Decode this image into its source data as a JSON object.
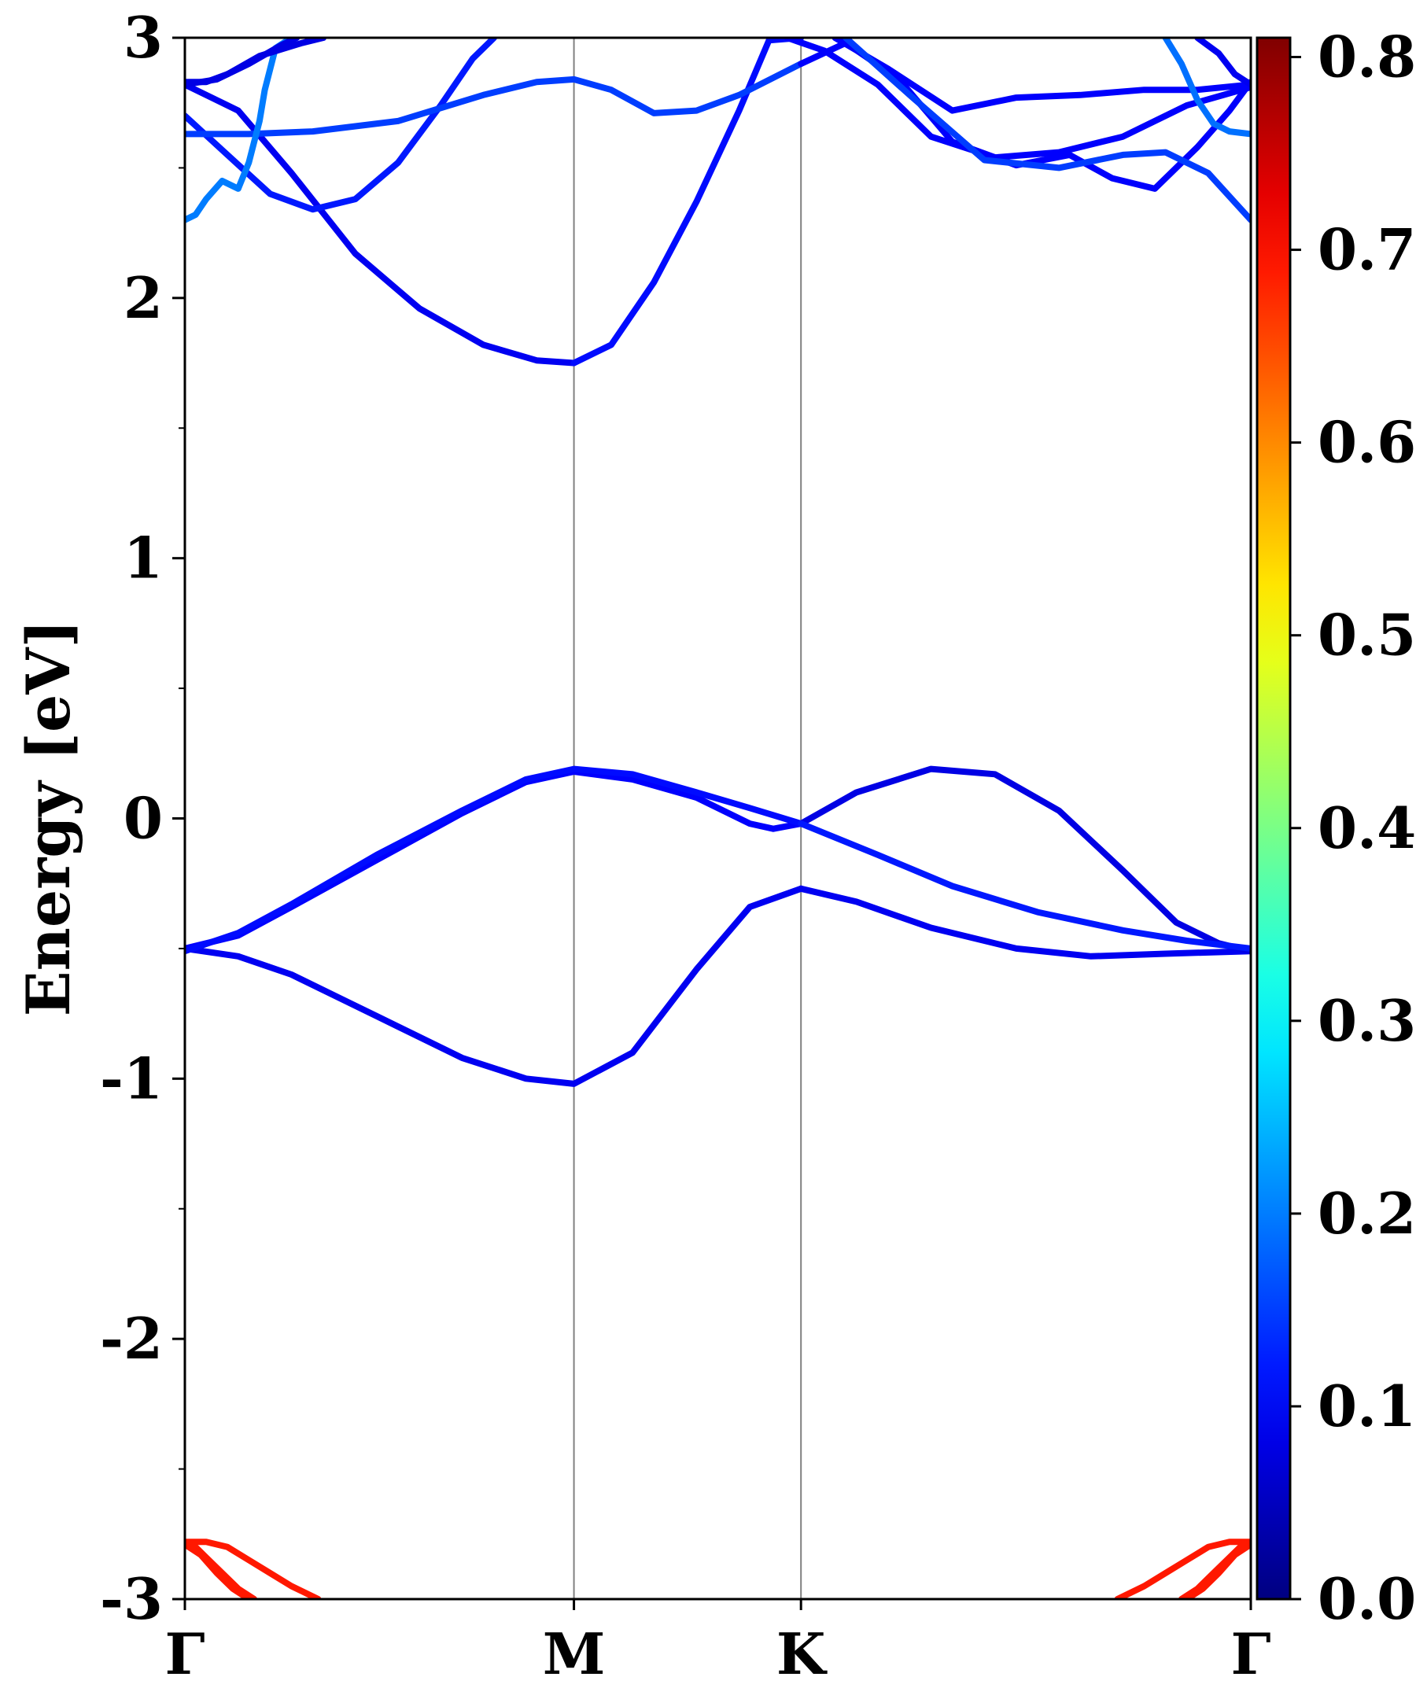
{
  "chart_data": {
    "type": "line",
    "title": "",
    "xlabel": "",
    "ylabel": "Energy [eV]",
    "ylim": [
      -3,
      3
    ],
    "yticks": [
      {
        "value": 3,
        "label": "3"
      },
      {
        "value": 2,
        "label": "2"
      },
      {
        "value": 1,
        "label": "1"
      },
      {
        "value": 0,
        "label": "0"
      },
      {
        "value": -1,
        "label": "-1"
      },
      {
        "value": -2,
        "label": "-2"
      },
      {
        "value": -3,
        "label": "-3"
      }
    ],
    "yminor": [
      2.5,
      1.5,
      0.5,
      -0.5,
      -1.5,
      -2.5
    ],
    "xlim": [
      0,
      1
    ],
    "kpoints": [
      {
        "label": "Γ",
        "x": 0.0
      },
      {
        "label": "M",
        "x": 0.365
      },
      {
        "label": "K",
        "x": 0.578
      },
      {
        "label": "Γ",
        "x": 1.0
      }
    ],
    "grid": false,
    "colorbar": {
      "cmap": "jet",
      "range": [
        0.0,
        0.81
      ],
      "ticks": [
        {
          "value": 0.0,
          "label": "0.0"
        },
        {
          "value": 0.1,
          "label": "0.1"
        },
        {
          "value": 0.2,
          "label": "0.2"
        },
        {
          "value": 0.3,
          "label": "0.3"
        },
        {
          "value": 0.4,
          "label": "0.4"
        },
        {
          "value": 0.5,
          "label": "0.5"
        },
        {
          "value": 0.6,
          "label": "0.6"
        },
        {
          "value": 0.7,
          "label": "0.7"
        },
        {
          "value": 0.8,
          "label": "0.8"
        }
      ]
    },
    "series": [
      {
        "weight": 0.09,
        "x": [
          0,
          0.05,
          0.1,
          0.18,
          0.26,
          0.32,
          0.365,
          0.42,
          0.48,
          0.53,
          0.578
        ],
        "y": [
          -0.5,
          -0.53,
          -0.6,
          -0.76,
          -0.92,
          -1.0,
          -1.02,
          -0.9,
          -0.58,
          -0.34,
          -0.27
        ]
      },
      {
        "weight": 0.09,
        "x": [
          0.578,
          0.63,
          0.7,
          0.78,
          0.85,
          0.92,
          1.0
        ],
        "y": [
          -0.27,
          -0.32,
          -0.42,
          -0.5,
          -0.53,
          -0.52,
          -0.51
        ]
      },
      {
        "weight": 0.1,
        "x": [
          0,
          0.05,
          0.1,
          0.18,
          0.26,
          0.32,
          0.365,
          0.42,
          0.48,
          0.53,
          0.552,
          0.578
        ],
        "y": [
          -0.5,
          -0.45,
          -0.34,
          -0.16,
          0.02,
          0.14,
          0.18,
          0.15,
          0.08,
          -0.02,
          -0.04,
          -0.02
        ]
      },
      {
        "weight": 0.08,
        "x": [
          0.578,
          0.63,
          0.7,
          0.76,
          0.82,
          0.88,
          0.93,
          0.97,
          1.0
        ],
        "y": [
          -0.02,
          0.1,
          0.19,
          0.17,
          0.03,
          -0.2,
          -0.4,
          -0.48,
          -0.51
        ]
      },
      {
        "weight": 0.11,
        "x": [
          0,
          0.05,
          0.1,
          0.18,
          0.26,
          0.32,
          0.365,
          0.42,
          0.48,
          0.53,
          0.578
        ],
        "y": [
          -0.51,
          -0.44,
          -0.33,
          -0.14,
          0.03,
          0.15,
          0.19,
          0.17,
          0.1,
          0.04,
          -0.02
        ]
      },
      {
        "weight": 0.12,
        "x": [
          0.578,
          0.65,
          0.72,
          0.8,
          0.88,
          0.94,
          1.0
        ],
        "y": [
          -0.02,
          -0.14,
          -0.26,
          -0.36,
          -0.43,
          -0.47,
          -0.5
        ]
      },
      {
        "weight": 0.09,
        "x": [
          0,
          0.05,
          0.1,
          0.16,
          0.22,
          0.28,
          0.33,
          0.365
        ],
        "y": [
          2.82,
          2.72,
          2.48,
          2.17,
          1.96,
          1.82,
          1.76,
          1.75
        ]
      },
      {
        "weight": 0.11,
        "x": [
          0.365,
          0.4,
          0.44,
          0.48,
          0.52,
          0.548,
          0.578
        ],
        "y": [
          1.75,
          1.82,
          2.06,
          2.37,
          2.72,
          2.99,
          3.0
        ]
      },
      {
        "weight": 0.12,
        "x": [
          0,
          0.04,
          0.08,
          0.12,
          0.16,
          0.2,
          0.24,
          0.27,
          0.29
        ],
        "y": [
          2.7,
          2.55,
          2.4,
          2.34,
          2.38,
          2.52,
          2.74,
          2.92,
          3.0
        ]
      },
      {
        "weight": 0.15,
        "x": [
          0,
          0.06,
          0.12,
          0.2,
          0.28,
          0.33,
          0.365,
          0.4,
          0.44,
          0.48,
          0.52,
          0.578
        ],
        "y": [
          2.63,
          2.63,
          2.64,
          2.68,
          2.78,
          2.83,
          2.84,
          2.8,
          2.71,
          2.72,
          2.78,
          2.9
        ]
      },
      {
        "weight": 0.2,
        "x": [
          0,
          0.01,
          0.02,
          0.035,
          0.05,
          0.06,
          0.07,
          0.075,
          0.085,
          0.1
        ],
        "y": [
          2.3,
          2.32,
          2.38,
          2.45,
          2.42,
          2.52,
          2.68,
          2.8,
          2.96,
          3.0
        ]
      },
      {
        "weight": 0.08,
        "x": [
          0,
          0.03,
          0.06,
          0.09,
          0.105
        ],
        "y": [
          2.82,
          2.84,
          2.9,
          2.97,
          3.0
        ]
      },
      {
        "weight": 0.08,
        "x": [
          0,
          0.02,
          0.04,
          0.07,
          0.11,
          0.13
        ],
        "y": [
          2.83,
          2.83,
          2.86,
          2.93,
          2.98,
          3.0
        ]
      },
      {
        "weight": 0.1,
        "x": [
          0.578,
          0.62,
          0.67,
          0.72,
          0.78,
          0.83,
          0.87,
          0.91,
          0.95,
          0.98,
          1.0
        ],
        "y": [
          2.9,
          2.98,
          2.84,
          2.6,
          2.51,
          2.55,
          2.46,
          2.42,
          2.58,
          2.72,
          2.83
        ]
      },
      {
        "weight": 0.1,
        "x": [
          0.565,
          0.6,
          0.65,
          0.7,
          0.76,
          0.82,
          0.88,
          0.94,
          1.0
        ],
        "y": [
          3.0,
          2.95,
          2.82,
          2.62,
          2.54,
          2.56,
          2.62,
          2.74,
          2.81
        ]
      },
      {
        "weight": 0.1,
        "x": [
          0.61,
          0.66,
          0.72,
          0.78,
          0.84,
          0.9,
          0.95,
          1.0
        ],
        "y": [
          3.0,
          2.88,
          2.72,
          2.77,
          2.78,
          2.8,
          2.8,
          2.82
        ]
      },
      {
        "weight": 0.15,
        "x": [
          0.62,
          0.68,
          0.75,
          0.82,
          0.88,
          0.92,
          0.96,
          1.0
        ],
        "y": [
          3.0,
          2.78,
          2.53,
          2.5,
          2.55,
          2.56,
          2.48,
          2.3
        ]
      },
      {
        "weight": 0.19,
        "x": [
          0.92,
          0.935,
          0.95,
          0.965,
          0.98,
          1.0
        ],
        "y": [
          3.0,
          2.9,
          2.76,
          2.67,
          2.64,
          2.63
        ]
      },
      {
        "weight": 0.09,
        "x": [
          0.95,
          0.97,
          0.985,
          1.0
        ],
        "y": [
          3.0,
          2.94,
          2.86,
          2.82
        ]
      },
      {
        "weight": 0.69,
        "x": [
          0,
          0.02,
          0.04,
          0.06,
          0.08,
          0.1,
          0.125
        ],
        "y": [
          -2.78,
          -2.78,
          -2.8,
          -2.85,
          -2.9,
          -2.95,
          -3.0
        ]
      },
      {
        "weight": 0.69,
        "x": [
          0,
          0.01,
          0.02,
          0.035,
          0.05,
          0.065
        ],
        "y": [
          -2.78,
          -2.8,
          -2.84,
          -2.9,
          -2.96,
          -3.0
        ]
      },
      {
        "weight": 0.69,
        "x": [
          0,
          0.015,
          0.03,
          0.045,
          0.06
        ],
        "y": [
          -2.79,
          -2.83,
          -2.9,
          -2.96,
          -3.0
        ]
      },
      {
        "weight": 0.69,
        "x": [
          1.0,
          0.98,
          0.96,
          0.94,
          0.92,
          0.9,
          0.875
        ],
        "y": [
          -2.78,
          -2.78,
          -2.8,
          -2.85,
          -2.9,
          -2.95,
          -3.0
        ]
      },
      {
        "weight": 0.69,
        "x": [
          1.0,
          0.99,
          0.98,
          0.965,
          0.95,
          0.935
        ],
        "y": [
          -2.78,
          -2.8,
          -2.84,
          -2.9,
          -2.96,
          -3.0
        ]
      },
      {
        "weight": 0.69,
        "x": [
          1.0,
          0.985,
          0.97,
          0.955,
          0.94
        ],
        "y": [
          -2.79,
          -2.83,
          -2.9,
          -2.96,
          -3.0
        ]
      }
    ]
  }
}
